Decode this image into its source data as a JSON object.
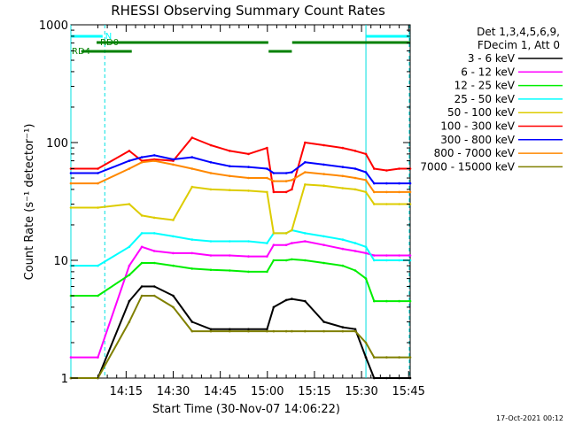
{
  "chart_data": {
    "type": "line",
    "title": "RHESSI Observing Summary Count Rates",
    "xlabel": "Start Time (30-Nov-07 14:06:22)",
    "ylabel": "Count Rate (s⁻¹ detector⁻¹)",
    "y_scale": "log",
    "ylim": [
      1,
      1000
    ],
    "xlim_minutes": [
      -8.6,
      99.5
    ],
    "x_ticks": [
      {
        "label": "14:15",
        "min": 9
      },
      {
        "label": "14:30",
        "min": 24
      },
      {
        "label": "14:45",
        "min": 39
      },
      {
        "label": "15:00",
        "min": 54
      },
      {
        "label": "15:15",
        "min": 69
      },
      {
        "label": "15:30",
        "min": 84
      },
      {
        "label": "15:45",
        "min": 99
      }
    ],
    "y_ticks": [
      {
        "label": "1",
        "value": 1
      },
      {
        "label": "10",
        "value": 10
      },
      {
        "label": "100",
        "value": 100
      },
      {
        "label": "1000",
        "value": 1000
      }
    ],
    "legend": {
      "header": [
        "Det 1,3,4,5,6,9,",
        "FDecim 1, Att 0"
      ],
      "placement": "right"
    },
    "x": [
      -8.6,
      0,
      10,
      14,
      18,
      24,
      30,
      36,
      42,
      48,
      53.9,
      56,
      60,
      61.8,
      66,
      72,
      78,
      82,
      85.4,
      88,
      92,
      96,
      99.5
    ],
    "series": [
      {
        "name": "3 - 6 keV",
        "color": "#000000",
        "values": [
          1,
          1,
          4.5,
          6,
          6,
          5,
          3,
          2.6,
          2.6,
          2.6,
          2.6,
          4,
          4.6,
          4.7,
          4.5,
          3,
          2.7,
          2.6,
          1.5,
          1,
          1,
          1,
          1
        ]
      },
      {
        "name": "6 - 12 keV",
        "color": "#ff00ff",
        "values": [
          1.5,
          1.5,
          9,
          13,
          12,
          11.5,
          11.5,
          11,
          11,
          10.8,
          10.8,
          13.5,
          13.5,
          14,
          14.5,
          13.5,
          12.5,
          12,
          11.5,
          11,
          11,
          11,
          11
        ]
      },
      {
        "name": "12 - 25 keV",
        "color": "#00ee00",
        "values": [
          5,
          5,
          7.5,
          9.5,
          9.5,
          9,
          8.5,
          8.3,
          8.2,
          8,
          8,
          10,
          10,
          10.2,
          10,
          9.5,
          9,
          8.2,
          7,
          4.5,
          4.5,
          4.5,
          4.5
        ]
      },
      {
        "name": "25 - 50 keV",
        "color": "#00ffff",
        "values": [
          9,
          9,
          13,
          17,
          17,
          16,
          15,
          14.5,
          14.5,
          14.5,
          14,
          17,
          17,
          18,
          17,
          16,
          15,
          14,
          13,
          10,
          10,
          10,
          10
        ]
      },
      {
        "name": "50 - 100 keV",
        "color": "#ddcc00",
        "values": [
          28,
          28,
          30,
          24,
          23,
          22,
          42,
          40,
          39.5,
          39,
          38,
          17,
          17,
          18,
          44,
          43,
          41,
          40,
          38,
          30,
          30,
          30,
          30
        ]
      },
      {
        "name": "100 - 300 keV",
        "color": "#ff0000",
        "values": [
          60,
          60,
          85,
          70,
          72,
          70,
          110,
          95,
          85,
          80,
          90,
          38,
          38,
          40,
          100,
          95,
          90,
          85,
          80,
          60,
          58,
          60,
          60
        ]
      },
      {
        "name": "300 - 800 keV",
        "color": "#0000ff",
        "values": [
          55,
          55,
          70,
          75,
          78,
          72,
          75,
          68,
          63,
          62,
          60,
          55,
          55,
          56,
          68,
          65,
          62,
          60,
          56,
          45,
          45,
          45,
          45
        ]
      },
      {
        "name": "800 - 7000 keV",
        "color": "#ff8800",
        "values": [
          45,
          45,
          60,
          68,
          70,
          65,
          60,
          55,
          52,
          50,
          50,
          47,
          47,
          48,
          56,
          54,
          52,
          50,
          48,
          38,
          38,
          38,
          38
        ]
      },
      {
        "name": "7000 - 15000 keV",
        "color": "#808000",
        "values": [
          1,
          1,
          3,
          5,
          5,
          4,
          2.5,
          2.5,
          2.5,
          2.5,
          2.5,
          2.5,
          2.5,
          2.5,
          2.5,
          2.5,
          2.5,
          2.5,
          2,
          1.5,
          1.5,
          1.5,
          1.5
        ]
      }
    ],
    "annotations": {
      "vertical_solid_lines_min": [
        -8.6,
        85.4
      ],
      "vertical_dashed_lines_min": [
        2.2,
        99.2
      ],
      "flag_bars": [
        {
          "label": "N",
          "color": "#00ffff",
          "row": "top",
          "segments": [
            [
              -8.6,
              1.5
            ],
            [
              85.4,
              99.5
            ]
          ]
        },
        {
          "label": "RD0",
          "color": "#008000",
          "row": "upper",
          "segments": [
            [
              -0.4,
              54.3
            ],
            [
              61.9,
              99.5
            ]
          ]
        },
        {
          "label": "RD4",
          "color": "#008000",
          "row": "lower",
          "segments": [
            [
              -5.3,
              10.8
            ],
            [
              54.4,
              61.8
            ]
          ]
        }
      ]
    },
    "footer_date": "17-Oct-2021 00:12",
    "grid": false
  }
}
